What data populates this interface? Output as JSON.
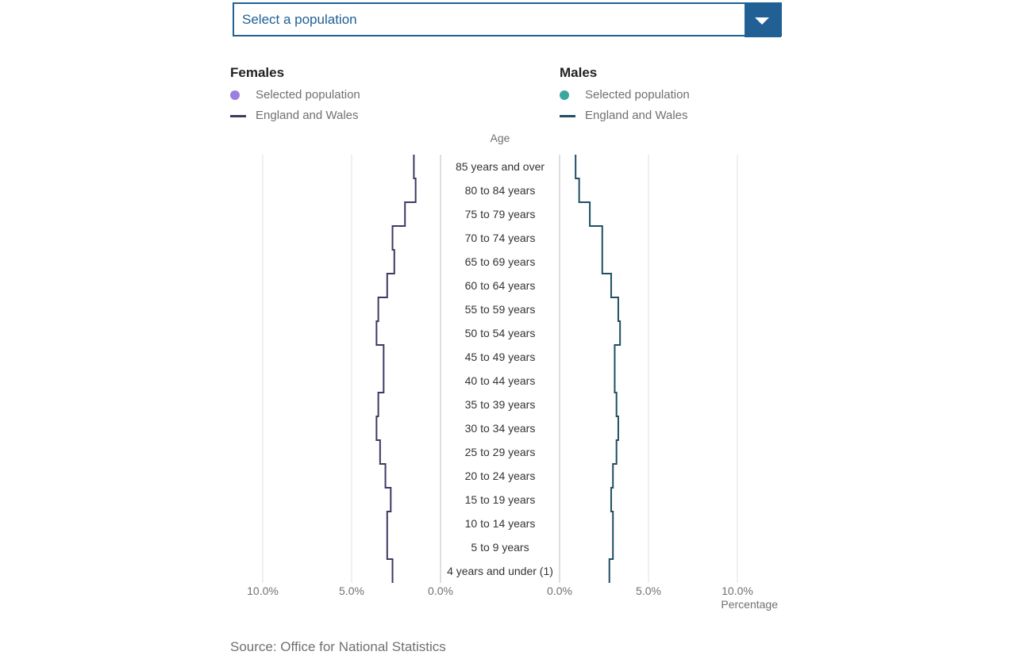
{
  "selector": {
    "placeholder": "Select a population"
  },
  "legend": {
    "females": {
      "title": "Females",
      "selected_label": "Selected population",
      "ew_label": "England and Wales",
      "selected_color": "#9b7fe0",
      "ew_color": "#3c3a63"
    },
    "males": {
      "title": "Males",
      "selected_label": "Selected population",
      "ew_label": "England and Wales",
      "selected_color": "#3aa6a0",
      "ew_color": "#1f4f63"
    }
  },
  "source": "Source: Office for National Statistics",
  "chart_data": {
    "type": "bar",
    "title": "",
    "y_axis_title": "Age",
    "x_axis_title": "Percentage",
    "xlim": [
      0,
      10
    ],
    "x_ticks": [
      "0.0%",
      "5.0%",
      "10.0%"
    ],
    "grid": true,
    "categories": [
      "85 years and over",
      "80 to 84 years",
      "75 to 79 years",
      "70 to 74 years",
      "65 to 69 years",
      "60 to 64 years",
      "55 to 59 years",
      "50 to 54 years",
      "45 to 49 years",
      "40 to 44 years",
      "35 to 39 years",
      "30 to 34 years",
      "25 to 29 years",
      "20 to 24 years",
      "15 to 19 years",
      "10 to 14 years",
      "5 to 9 years",
      "4 years and under (1)"
    ],
    "series": [
      {
        "name": "Females",
        "values": [
          1.5,
          1.4,
          2.0,
          2.7,
          2.6,
          3.0,
          3.5,
          3.6,
          3.2,
          3.2,
          3.5,
          3.6,
          3.4,
          3.1,
          2.8,
          3.0,
          3.0,
          2.7
        ]
      },
      {
        "name": "Males",
        "values": [
          0.9,
          1.1,
          1.7,
          2.4,
          2.4,
          2.9,
          3.3,
          3.4,
          3.1,
          3.1,
          3.2,
          3.3,
          3.2,
          3.0,
          2.9,
          3.0,
          3.0,
          2.8
        ]
      }
    ]
  }
}
